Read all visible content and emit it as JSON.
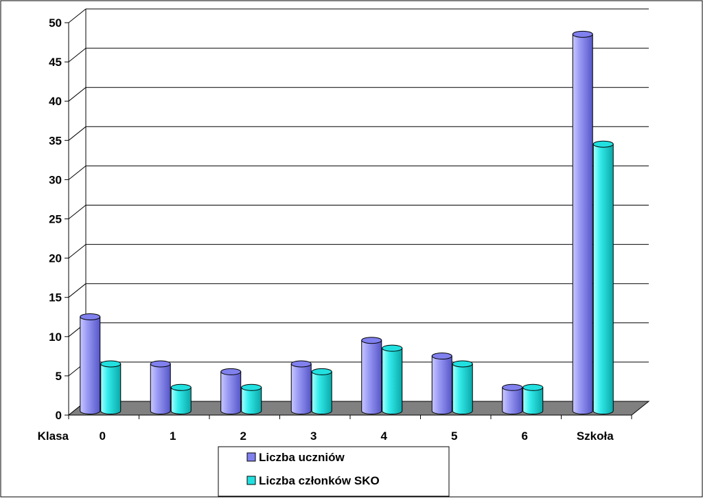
{
  "chart_data": {
    "type": "bar",
    "title": "",
    "xlabel": "Klasa",
    "ylabel": "",
    "categories": [
      "0",
      "1",
      "2",
      "3",
      "4",
      "5",
      "6",
      "Szkoła"
    ],
    "series": [
      {
        "name": "Liczba uczniów",
        "values": [
          12,
          6,
          5,
          6,
          9,
          7,
          3,
          48
        ],
        "color": "#8080ee"
      },
      {
        "name": "Liczba członków SKO",
        "values": [
          6,
          3,
          3,
          5,
          8,
          6,
          3,
          34
        ],
        "color": "#22e0e0"
      }
    ],
    "yticks": [
      "0",
      "5",
      "10",
      "15",
      "20",
      "25",
      "30",
      "35",
      "40",
      "45",
      "50"
    ],
    "ylim": [
      0,
      50
    ],
    "grid": true,
    "legend": "bottom-center",
    "style_3d": true,
    "floor_color": "#808080"
  }
}
